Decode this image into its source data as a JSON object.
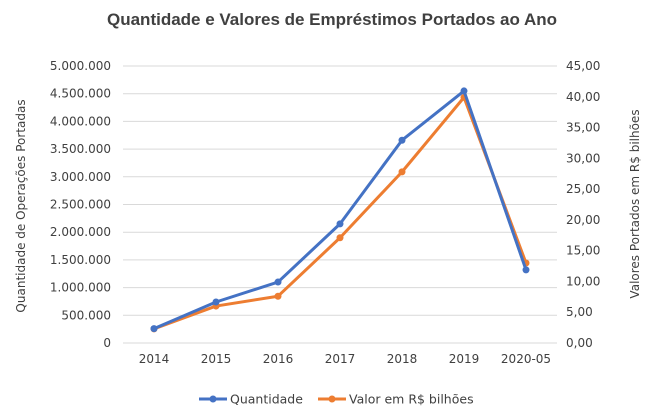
{
  "chart_data": {
    "type": "line",
    "title": "Quantidade e Valores de Empréstimos  Portados ao Ano",
    "categories": [
      "2014",
      "2015",
      "2016",
      "2017",
      "2018",
      "2019",
      "2020-05"
    ],
    "series": [
      {
        "name": "Quantidade",
        "axis": "left",
        "color": "#4472C4",
        "values": [
          260000,
          740000,
          1100000,
          2150000,
          3660000,
          4550000,
          1320000
        ]
      },
      {
        "name": "Valor em R$ bilhões",
        "axis": "right",
        "color": "#ED7D31",
        "values": [
          2.3,
          6.0,
          7.6,
          17.1,
          27.8,
          39.9,
          13.0
        ]
      }
    ],
    "ylabel": "Quantidade de Operações Portadas",
    "y2label": "Valores Portados em R$ bilhões",
    "ylim": [
      0,
      5000000
    ],
    "y2lim": [
      0,
      45
    ],
    "yticks": [
      "0",
      "500.000",
      "1.000.000",
      "1.500.000",
      "2.000.000",
      "2.500.000",
      "3.000.000",
      "3.500.000",
      "4.000.000",
      "4.500.000",
      "5.000.000"
    ],
    "y2ticks": [
      "0,00",
      "5,00",
      "10,00",
      "15,00",
      "20,00",
      "25,00",
      "30,00",
      "35,00",
      "40,00",
      "45,00"
    ],
    "grid": true,
    "gridlines": "horizontal",
    "legend_position": "bottom",
    "colors": {
      "grid": "#D9D9D9",
      "text": "#404040"
    }
  }
}
